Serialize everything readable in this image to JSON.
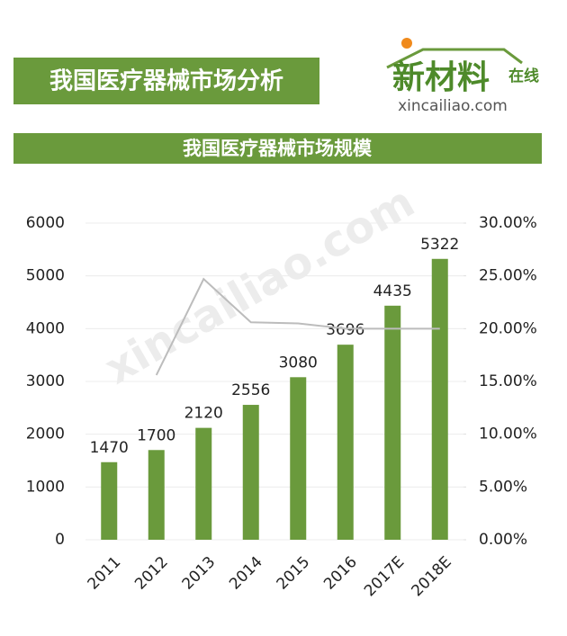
{
  "header": {
    "title": "我国医疗器械市场分析",
    "logo_name": "新材料",
    "logo_tag": "在线",
    "logo_url": "xincailiao.com"
  },
  "watermark": "xincailiao.com",
  "chart_data": {
    "type": "bar",
    "title": "我国医疗器械市场规模",
    "categories": [
      "2011",
      "2012",
      "2013",
      "2014",
      "2015",
      "2016",
      "2017E",
      "2018E"
    ],
    "series": [
      {
        "type": "bar",
        "color": "#6a9a3c",
        "values": [
          1470,
          1700,
          2120,
          2556,
          3080,
          3696,
          4435,
          5322
        ]
      },
      {
        "type": "line",
        "axis": "y2",
        "color": "#bcbcbc",
        "values": [
          null,
          15.6,
          24.7,
          20.6,
          20.5,
          20.0,
          20.0,
          20.0
        ]
      }
    ],
    "ylim": [
      0,
      6000
    ],
    "yticks": [
      0,
      1000,
      2000,
      3000,
      4000,
      5000,
      6000
    ],
    "y2lim": [
      0,
      30
    ],
    "y2ticks": [
      {
        "value": 0,
        "label": "0.00%"
      },
      {
        "value": 5,
        "label": "5.00%"
      },
      {
        "value": 10,
        "label": "10.00%"
      },
      {
        "value": 15,
        "label": "15.00%"
      },
      {
        "value": 20,
        "label": "20.00%"
      },
      {
        "value": 25,
        "label": "25.00%"
      },
      {
        "value": 30,
        "label": "30.00%"
      }
    ],
    "grid": true
  }
}
